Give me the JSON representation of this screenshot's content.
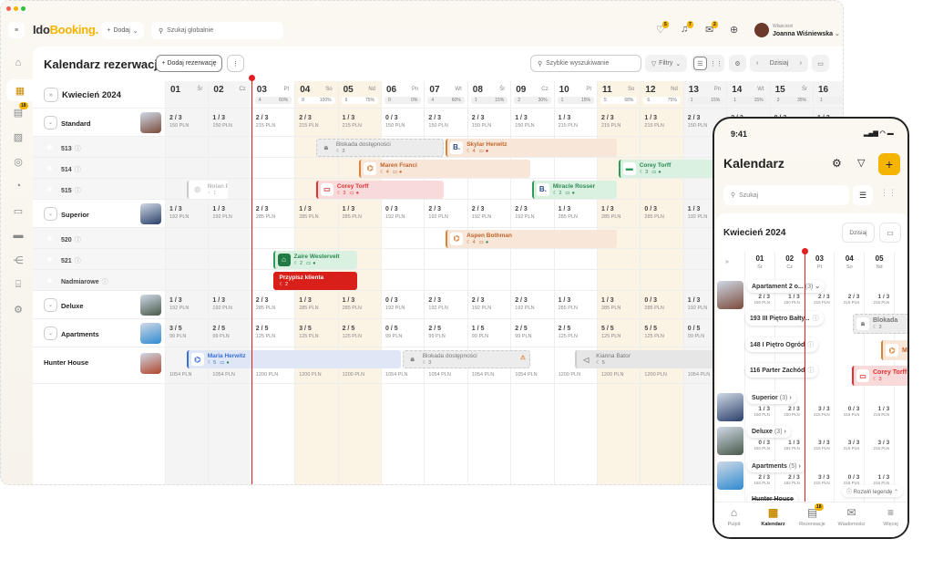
{
  "app": {
    "logo_a": "Ido",
    "logo_b": "Booking.",
    "add_label": "Dodaj",
    "global_search_placeholder": "Szukaj globalnie",
    "notifications": [
      {
        "icon": "heart-icon",
        "count": "5"
      },
      {
        "icon": "bell-icon",
        "count": "7"
      },
      {
        "icon": "chat-icon",
        "count": "2"
      },
      {
        "icon": "help-icon",
        "count": ""
      }
    ],
    "user": {
      "role": "Właściciel",
      "name": "Joanna Wiśniewska"
    }
  },
  "sidebar": {
    "items": [
      {
        "icon": "home-icon"
      },
      {
        "icon": "calendar-icon",
        "active": true
      },
      {
        "icon": "reservations-icon",
        "badge": "18"
      },
      {
        "icon": "image-icon"
      },
      {
        "icon": "user-icon"
      },
      {
        "icon": "chart-icon"
      },
      {
        "icon": "monitor-icon"
      },
      {
        "icon": "bed-icon"
      },
      {
        "icon": "share-icon"
      },
      {
        "icon": "store-icon"
      },
      {
        "icon": "settings-icon"
      }
    ]
  },
  "page": {
    "title": "Kalendarz rezerwacji",
    "add_reservation": "Dodaj rezerwację",
    "quick_search_placeholder": "Szybkie wyszukiwanie",
    "filters": "Filtry",
    "today": "Dzisiaj",
    "month": "Kwiecień 2024"
  },
  "colors": {
    "accent": "#f5b400",
    "now_line": "#e02020",
    "weekend": "#fbf3e3",
    "past": "#f4f4f4"
  },
  "calendar": {
    "today": "03",
    "days": [
      {
        "n": "01",
        "w": "Śr",
        "c": "",
        "p": "",
        "past": true
      },
      {
        "n": "02",
        "w": "Cz",
        "c": "",
        "p": "",
        "past": true
      },
      {
        "n": "03",
        "w": "Pt",
        "c": "4",
        "p": "60%"
      },
      {
        "n": "04",
        "w": "So",
        "c": "8",
        "p": "100%",
        "we": true
      },
      {
        "n": "05",
        "w": "Nd",
        "c": "6",
        "p": "75%",
        "we": true
      },
      {
        "n": "06",
        "w": "Pn",
        "c": "0",
        "p": "0%"
      },
      {
        "n": "07",
        "w": "Wt",
        "c": "4",
        "p": "60%"
      },
      {
        "n": "08",
        "w": "Śr",
        "c": "1",
        "p": "15%"
      },
      {
        "n": "09",
        "w": "Cz",
        "c": "2",
        "p": "30%"
      },
      {
        "n": "10",
        "w": "Pt",
        "c": "1",
        "p": "15%"
      },
      {
        "n": "11",
        "w": "So",
        "c": "5",
        "p": "68%",
        "we": true
      },
      {
        "n": "12",
        "w": "Nd",
        "c": "6",
        "p": "75%",
        "we": true
      },
      {
        "n": "13",
        "w": "Pn",
        "c": "1",
        "p": "15%",
        "past": true
      },
      {
        "n": "14",
        "w": "Wt",
        "c": "1",
        "p": "15%",
        "past": true
      },
      {
        "n": "15",
        "w": "Śr",
        "c": "3",
        "p": "35%",
        "past": true
      },
      {
        "n": "16",
        "w": "",
        "c": "1",
        "p": "",
        "past": true
      }
    ],
    "rows": [
      {
        "type": "cat",
        "label": "Standard",
        "thumb": "#7a4a3a",
        "cells": [
          [
            "2 / 3",
            "150 PLN"
          ],
          [
            "1 / 3",
            "150 PLN"
          ],
          [
            "2 / 3",
            "215 PLN"
          ],
          [
            "2 / 3",
            "215 PLN"
          ],
          [
            "1 / 3",
            "215 PLN"
          ],
          [
            "0 / 3",
            "150 PLN"
          ],
          [
            "2 / 3",
            "150 PLN"
          ],
          [
            "2 / 3",
            "150 PLN"
          ],
          [
            "1 / 3",
            "150 PLN"
          ],
          [
            "1 / 3",
            "215 PLN"
          ],
          [
            "2 / 3",
            "215 PLN"
          ],
          [
            "1 / 3",
            "215 PLN"
          ],
          [
            "2 / 3",
            "150 PLN"
          ],
          [
            "2 / 3",
            ""
          ],
          [
            "0 / 3",
            ""
          ],
          [
            "1 / 3",
            ""
          ]
        ]
      },
      {
        "type": "room",
        "label": "513"
      },
      {
        "type": "room",
        "label": "514"
      },
      {
        "type": "room",
        "label": "515"
      },
      {
        "type": "cat",
        "label": "Superior",
        "thumb": "#2b3f6a",
        "cells": [
          [
            "1 / 3",
            "192 PLN"
          ],
          [
            "1 / 3",
            "192 PLN"
          ],
          [
            "2 / 3",
            "285 PLN"
          ],
          [
            "1 / 3",
            "285 PLN"
          ],
          [
            "1 / 3",
            "285 PLN"
          ],
          [
            "0 / 3",
            "192 PLN"
          ],
          [
            "2 / 3",
            "192 PLN"
          ],
          [
            "2 / 3",
            "192 PLN"
          ],
          [
            "2 / 3",
            "192 PLN"
          ],
          [
            "1 / 3",
            "285 PLN"
          ],
          [
            "1 / 3",
            "285 PLN"
          ],
          [
            "0 / 3",
            "285 PLN"
          ],
          [
            "1 / 3",
            "192 PLN"
          ]
        ]
      },
      {
        "type": "room",
        "label": "520"
      },
      {
        "type": "room",
        "label": "521"
      },
      {
        "type": "room",
        "label": "Nadmiarowe"
      },
      {
        "type": "cat",
        "label": "Deluxe",
        "thumb": "#4a5a4a",
        "cells": [
          [
            "1 / 3",
            "192 PLN"
          ],
          [
            "1 / 3",
            "192 PLN"
          ],
          [
            "2 / 3",
            "285 PLN"
          ],
          [
            "1 / 3",
            "285 PLN"
          ],
          [
            "1 / 3",
            "285 PLN"
          ],
          [
            "0 / 3",
            "192 PLN"
          ],
          [
            "2 / 3",
            "192 PLN"
          ],
          [
            "2 / 3",
            "192 PLN"
          ],
          [
            "2 / 3",
            "192 PLN"
          ],
          [
            "1 / 3",
            "285 PLN"
          ],
          [
            "1 / 3",
            "285 PLN"
          ],
          [
            "0 / 3",
            "285 PLN"
          ],
          [
            "1 / 3",
            "192 PLN"
          ]
        ]
      },
      {
        "type": "cat",
        "label": "Apartments",
        "thumb": "#2f8ad0",
        "cells": [
          [
            "3 / 5",
            "99 PLN"
          ],
          [
            "2 / 5",
            "99 PLN"
          ],
          [
            "2 / 5",
            "125 PLN"
          ],
          [
            "3 / 5",
            "125 PLN"
          ],
          [
            "2 / 5",
            "125 PLN"
          ],
          [
            "0 / 5",
            "99 PLN"
          ],
          [
            "2 / 5",
            "99 PLN"
          ],
          [
            "1 / 5",
            "99 PLN"
          ],
          [
            "2 / 5",
            "99 PLN"
          ],
          [
            "2 / 5",
            "125 PLN"
          ],
          [
            "5 / 5",
            "125 PLN"
          ],
          [
            "5 / 5",
            "125 PLN"
          ],
          [
            "0 / 5",
            "99 PLN"
          ]
        ]
      },
      {
        "type": "house",
        "label": "Hunter House",
        "thumb": "#b0442a",
        "cells": [
          [
            "",
            "1054 PLN"
          ],
          [
            "",
            "1054 PLN"
          ],
          [
            "",
            "1200 PLN"
          ],
          [
            "",
            "1200 PLN"
          ],
          [
            "",
            "1200 PLN"
          ],
          [
            "",
            "1054 PLN"
          ],
          [
            "",
            "1054 PLN"
          ],
          [
            "",
            "1054 PLN"
          ],
          [
            "",
            "1054 PLN"
          ],
          [
            "",
            "1200 PLN"
          ],
          [
            "",
            "1200 PLN"
          ],
          [
            "",
            "1200 PLN"
          ],
          [
            "",
            "1054 PLN"
          ]
        ]
      }
    ],
    "bookings": [
      {
        "row": 3,
        "from": "01",
        "to": "02",
        "name": "Nolan Philips",
        "guests": "1",
        "style": "faded",
        "icon": "user-icon"
      },
      {
        "row": 1,
        "from": "04",
        "to": "07",
        "name": "Blokada dostępności",
        "guests": "3",
        "style": "block",
        "icon": "lock-icon"
      },
      {
        "row": 1,
        "from": "07",
        "to": "11",
        "name": "Skylar Herwitz",
        "guests": "4",
        "style": "orange",
        "icon": "booking-com-icon",
        "dot": "#e02020"
      },
      {
        "row": 2,
        "from": "05",
        "to": "09",
        "name": "Maren Franci",
        "guests": "4",
        "style": "orange",
        "icon": "airbnb-icon",
        "dot": "#c0652a"
      },
      {
        "row": 2,
        "from": "11",
        "to": "14",
        "name": "Corey Torff",
        "guests": "3",
        "style": "green",
        "icon": "bed-icon",
        "dot": "#2a8a50"
      },
      {
        "row": 3,
        "from": "04",
        "to": "07",
        "name": "Corey Torff",
        "guests": "3",
        "style": "red",
        "icon": "monitor-icon",
        "dot": "#e03131"
      },
      {
        "row": 3,
        "from": "09",
        "to": "11",
        "name": "Miracle Rosser",
        "guests": "2",
        "style": "green",
        "icon": "booking-com-icon",
        "dot": "#2a8a50"
      },
      {
        "row": 5,
        "from": "07",
        "to": "11",
        "name": "Aspen Bothman",
        "guests": "4",
        "style": "orange",
        "icon": "airbnb-icon",
        "dot": "#2a8a50"
      },
      {
        "row": 6,
        "from": "03",
        "to": "05",
        "name": "Zaire Westervelt",
        "guests": "2",
        "style": "green",
        "icon": "home-icon",
        "dot": "#2a8a50"
      },
      {
        "row": 7,
        "from": "03",
        "to": "05",
        "name": "Przypisz klienta",
        "guests": "2",
        "style": "solidred",
        "icon": ""
      },
      {
        "row": 10,
        "from": "01",
        "to": "06",
        "name": "Maria Herwitz",
        "guests": "5",
        "style": "blue",
        "icon": "airbnb-icon",
        "dot": "#2a8a50"
      },
      {
        "row": 10,
        "from": "06",
        "to": "09",
        "name": "Blokada dostępności",
        "guests": "3",
        "style": "block",
        "icon": "lock-icon",
        "warn": true
      },
      {
        "row": 10,
        "from": "10",
        "to": "14",
        "name": "Kianna Bator",
        "guests": "5",
        "style": "gray",
        "icon": "megaphone-icon"
      }
    ]
  },
  "phone": {
    "time": "9:41",
    "title": "Kalendarz",
    "search_placeholder": "Szukaj",
    "month": "Kwiecień 2024",
    "today": "Dzisiaj",
    "legend": "Rozwiń legendę",
    "days": [
      {
        "n": "01",
        "w": "Śr"
      },
      {
        "n": "02",
        "w": "Cz"
      },
      {
        "n": "03",
        "w": "Pt"
      },
      {
        "n": "04",
        "w": "So"
      },
      {
        "n": "05",
        "w": "Nd"
      },
      {
        "n": "0",
        "w": "P"
      }
    ],
    "groups": [
      {
        "label": "Apartament 2 o...",
        "count": "(3)",
        "thumb": "#7a4a3a",
        "cells": [
          [
            "2 / 3",
            "150 PLN"
          ],
          [
            "1 / 3",
            "150 PLN"
          ],
          [
            "2 / 3",
            "215 PLN"
          ],
          [
            "2 / 3",
            "215 PLN"
          ],
          [
            "1 / 3",
            "215 PLN"
          ]
        ],
        "rooms": [
          "193 III Piętro Bałty...",
          "148 I Piętro Ogród",
          "116 Parter Zachód"
        ]
      },
      {
        "label": "Superior",
        "count": "(3)",
        "thumb": "#2b3f6a",
        "cells": [
          [
            "1 / 3",
            "150 PLN"
          ],
          [
            "2 / 3",
            "150 PLN"
          ],
          [
            "3 / 3",
            "215 PLN"
          ],
          [
            "0 / 3",
            "215 PLN"
          ],
          [
            "1 / 3",
            "215 PLN"
          ]
        ]
      },
      {
        "label": "Deluxe",
        "count": "(3)",
        "thumb": "#4a5a4a",
        "cells": [
          [
            "0 / 3",
            "192 PLN"
          ],
          [
            "1 / 3",
            "192 PLN"
          ],
          [
            "3 / 3",
            "215 PLN"
          ],
          [
            "3 / 3",
            "215 PLN"
          ],
          [
            "3 / 3",
            "215 PLN"
          ]
        ]
      },
      {
        "label": "Apartments",
        "count": "(5)",
        "thumb": "#2f8ad0",
        "cells": [
          [
            "2 / 3",
            "192 PLN"
          ],
          [
            "2 / 3",
            "192 PLN"
          ],
          [
            "3 / 3",
            "215 PLN"
          ],
          [
            "0 / 3",
            "215 PLN"
          ],
          [
            "1 / 3",
            "215 PLN"
          ]
        ]
      }
    ],
    "hunter": "Hunter House",
    "bookings": [
      {
        "name": "Blokada",
        "guests": "3"
      },
      {
        "name": "M",
        "guests": ""
      },
      {
        "name": "Corey Torff",
        "guests": "3"
      }
    ],
    "nav": [
      {
        "label": "Pulpit",
        "icon": "home-icon"
      },
      {
        "label": "Kalendarz",
        "icon": "calendar-icon",
        "active": true
      },
      {
        "label": "Rezerwacje",
        "icon": "reservations-icon",
        "badge": "18"
      },
      {
        "label": "Wiadomości",
        "icon": "chat-icon"
      },
      {
        "label": "Więcej",
        "icon": "menu-icon"
      }
    ]
  }
}
